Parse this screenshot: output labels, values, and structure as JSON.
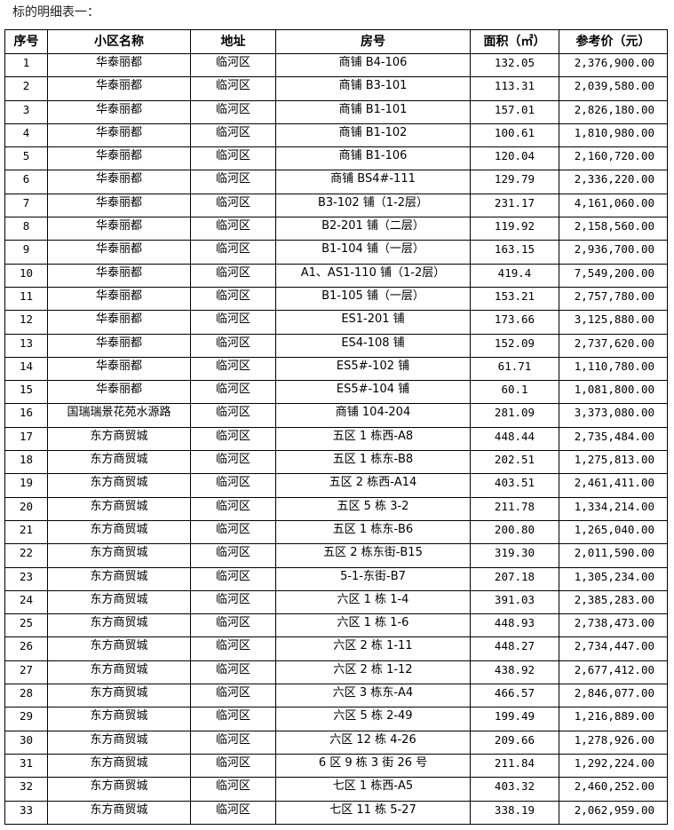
{
  "title": "标的明细表一：",
  "columns": [
    "序号",
    "小区名称",
    "地址",
    "房号",
    "面积（㎡）",
    "参考价（元）"
  ],
  "rows": [
    [
      "1",
      "华泰丽都",
      "临河区",
      "商铺 B4-106",
      "132.05",
      "2,376,900.00"
    ],
    [
      "2",
      "华泰丽都",
      "临河区",
      "商铺 B3-101",
      "113.31",
      "2,039,580.00"
    ],
    [
      "3",
      "华泰丽都",
      "临河区",
      "商铺 B1-101",
      "157.01",
      "2,826,180.00"
    ],
    [
      "4",
      "华泰丽都",
      "临河区",
      "商铺 B1-102",
      "100.61",
      "1,810,980.00"
    ],
    [
      "5",
      "华泰丽都",
      "临河区",
      "商铺 B1-106",
      "120.04",
      "2,160,720.00"
    ],
    [
      "6",
      "华泰丽都",
      "临河区",
      "商铺  BS4#-111",
      "129.79",
      "2,336,220.00"
    ],
    [
      "7",
      "华泰丽都",
      "临河区",
      "B3-102 铺（1-2层）",
      "231.17",
      "4,161,060.00"
    ],
    [
      "8",
      "华泰丽都",
      "临河区",
      "B2-201 铺（二层）",
      "119.92",
      "2,158,560.00"
    ],
    [
      "9",
      "华泰丽都",
      "临河区",
      "B1-104 铺（一层）",
      "163.15",
      "2,936,700.00"
    ],
    [
      "10",
      "华泰丽都",
      "临河区",
      "A1、AS1-110 铺（1-2层）",
      "419.4",
      "7,549,200.00"
    ],
    [
      "11",
      "华泰丽都",
      "临河区",
      "B1-105 铺（一层）",
      "153.21",
      "2,757,780.00"
    ],
    [
      "12",
      "华泰丽都",
      "临河区",
      "ES1-201 铺",
      "173.66",
      "3,125,880.00"
    ],
    [
      "13",
      "华泰丽都",
      "临河区",
      "ES4-108 铺",
      "152.09",
      "2,737,620.00"
    ],
    [
      "14",
      "华泰丽都",
      "临河区",
      "ES5#-102 铺",
      "61.71",
      "1,110,780.00"
    ],
    [
      "15",
      "华泰丽都",
      "临河区",
      "ES5#-104 铺",
      "60.1",
      "1,081,800.00"
    ],
    [
      "16",
      "国瑞瑞景花苑水源路",
      "临河区",
      "商铺 104-204",
      "281.09",
      "3,373,080.00"
    ],
    [
      "17",
      "东方商贸城",
      "临河区",
      "五区 1 栋西-A8",
      "448.44",
      "2,735,484.00"
    ],
    [
      "18",
      "东方商贸城",
      "临河区",
      "五区 1 栋东-B8",
      "202.51",
      "1,275,813.00"
    ],
    [
      "19",
      "东方商贸城",
      "临河区",
      "五区 2 栋西-A14",
      "403.51",
      "2,461,411.00"
    ],
    [
      "20",
      "东方商贸城",
      "临河区",
      "五区 5 栋 3-2",
      "211.78",
      "1,334,214.00"
    ],
    [
      "21",
      "东方商贸城",
      "临河区",
      "五区 1 栋东-B6",
      "200.80",
      "1,265,040.00"
    ],
    [
      "22",
      "东方商贸城",
      "临河区",
      "五区 2 栋东街-B15",
      "319.30",
      "2,011,590.00"
    ],
    [
      "23",
      "东方商贸城",
      "临河区",
      "5-1-东街-B7",
      "207.18",
      "1,305,234.00"
    ],
    [
      "24",
      "东方商贸城",
      "临河区",
      "六区 1 栋 1-4",
      "391.03",
      "2,385,283.00"
    ],
    [
      "25",
      "东方商贸城",
      "临河区",
      "六区 1 栋 1-6",
      "448.93",
      "2,738,473.00"
    ],
    [
      "26",
      "东方商贸城",
      "临河区",
      "六区 2 栋 1-11",
      "448.27",
      "2,734,447.00"
    ],
    [
      "27",
      "东方商贸城",
      "临河区",
      "六区 2 栋 1-12",
      "438.92",
      "2,677,412.00"
    ],
    [
      "28",
      "东方商贸城",
      "临河区",
      "六区 3 栋东-A4",
      "466.57",
      "2,846,077.00"
    ],
    [
      "29",
      "东方商贸城",
      "临河区",
      "六区 5 栋 2-49",
      "199.49",
      "1,216,889.00"
    ],
    [
      "30",
      "东方商贸城",
      "临河区",
      "六区 12 栋 4-26",
      "209.66",
      "1,278,926.00"
    ],
    [
      "31",
      "东方商贸城",
      "临河区",
      "6 区 9 栋 3 街 26 号",
      "211.84",
      "1,292,224.00"
    ],
    [
      "32",
      "东方商贸城",
      "临河区",
      "七区 1 栋西-A5",
      "403.32",
      "2,460,252.00"
    ],
    [
      "33",
      "东方商贸城",
      "临河区",
      "七区 11 栋 5-27",
      "338.19",
      "2,062,959.00"
    ]
  ]
}
